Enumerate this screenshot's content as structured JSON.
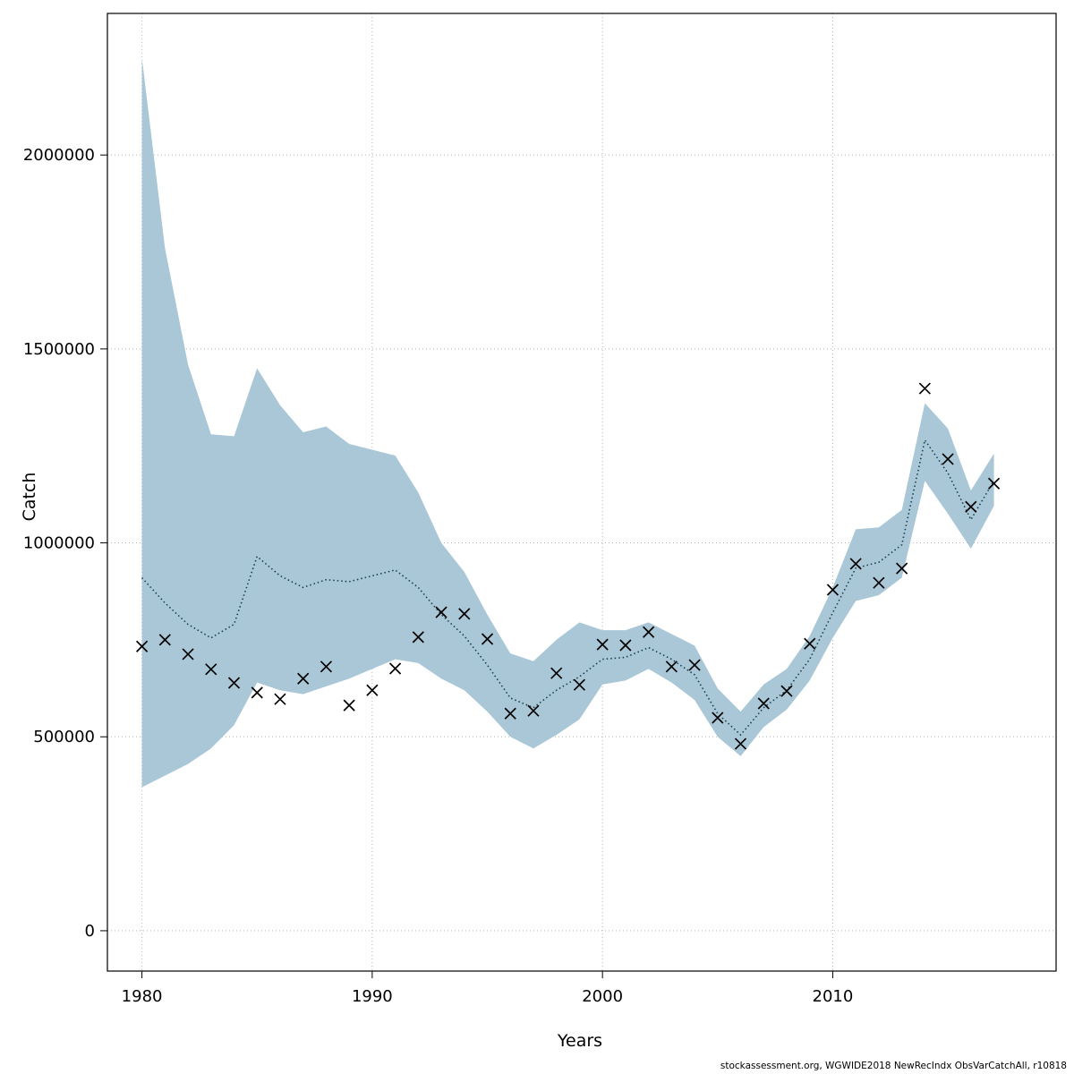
{
  "chart_data": {
    "type": "line",
    "title": "",
    "xlabel": "Years",
    "ylabel": "Catch",
    "footer": "stockassessment.org, WGWIDE2018 NewRecIndx ObsVarCatchAll, r10818",
    "grid": "dotted",
    "legend": "none",
    "xlim": [
      1978.5,
      2019.7
    ],
    "ylim": [
      -104000,
      2365000
    ],
    "xticks": [
      1980,
      1990,
      2000,
      2010
    ],
    "yticks": [
      0,
      500000,
      1000000,
      1500000,
      2000000
    ],
    "colors": {
      "band": "#a9c7d7",
      "line": "#16404f",
      "marker": "#000000",
      "grid": "#b5b5b5",
      "axis": "#000000"
    },
    "x": [
      1980,
      1981,
      1982,
      1983,
      1984,
      1985,
      1986,
      1987,
      1988,
      1989,
      1990,
      1991,
      1992,
      1993,
      1994,
      1995,
      1996,
      1997,
      1998,
      1999,
      2000,
      2001,
      2002,
      2003,
      2004,
      2005,
      2006,
      2007,
      2008,
      2009,
      2010,
      2011,
      2012,
      2013,
      2014,
      2015,
      2016,
      2017
    ],
    "series": [
      {
        "name": "estimated-catch",
        "style": "dotted-line",
        "values": [
          910000,
          845000,
          790000,
          755000,
          790000,
          965000,
          915000,
          885000,
          905000,
          900000,
          915000,
          930000,
          885000,
          815000,
          760000,
          685000,
          600000,
          575000,
          620000,
          655000,
          700000,
          705000,
          730000,
          700000,
          660000,
          560000,
          505000,
          575000,
          620000,
          700000,
          820000,
          935000,
          950000,
          995000,
          1265000,
          1180000,
          1060000,
          1160000
        ]
      },
      {
        "name": "observed-catch",
        "style": "x-markers",
        "values": [
          733000,
          750000,
          713000,
          674000,
          639000,
          614000,
          597000,
          650000,
          681000,
          581000,
          620000,
          676000,
          757000,
          821000,
          817000,
          752000,
          560000,
          567000,
          664000,
          634000,
          738000,
          736000,
          770000,
          681000,
          685000,
          549000,
          482000,
          586000,
          618000,
          740000,
          879000,
          946000,
          897000,
          934000,
          1398000,
          1216000,
          1093000,
          1153000
        ]
      },
      {
        "name": "ci-upper",
        "style": "band-upper",
        "values": [
          2250000,
          1760000,
          1460000,
          1280000,
          1275000,
          1450000,
          1355000,
          1285000,
          1300000,
          1255000,
          1240000,
          1225000,
          1130000,
          1000000,
          925000,
          815000,
          715000,
          695000,
          750000,
          795000,
          775000,
          775000,
          795000,
          765000,
          735000,
          625000,
          565000,
          635000,
          675000,
          760000,
          885000,
          1035000,
          1040000,
          1085000,
          1360000,
          1295000,
          1135000,
          1230000
        ]
      },
      {
        "name": "ci-lower",
        "style": "band-lower",
        "values": [
          370000,
          400000,
          430000,
          470000,
          530000,
          640000,
          620000,
          610000,
          630000,
          650000,
          675000,
          700000,
          690000,
          650000,
          620000,
          565000,
          500000,
          470000,
          505000,
          545000,
          635000,
          645000,
          675000,
          640000,
          595000,
          500000,
          450000,
          525000,
          570000,
          645000,
          755000,
          850000,
          865000,
          910000,
          1160000,
          1075000,
          985000,
          1095000
        ]
      }
    ]
  }
}
